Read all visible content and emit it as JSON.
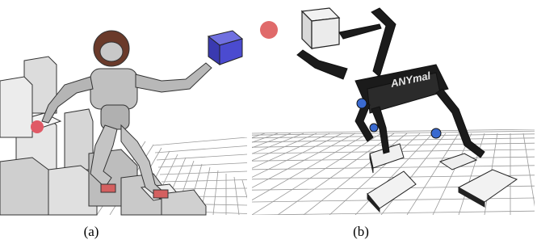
{
  "figure": {
    "panels": [
      {
        "label": "(a)"
      },
      {
        "label": "(b)",
        "logo": "ANYmal"
      }
    ]
  }
}
